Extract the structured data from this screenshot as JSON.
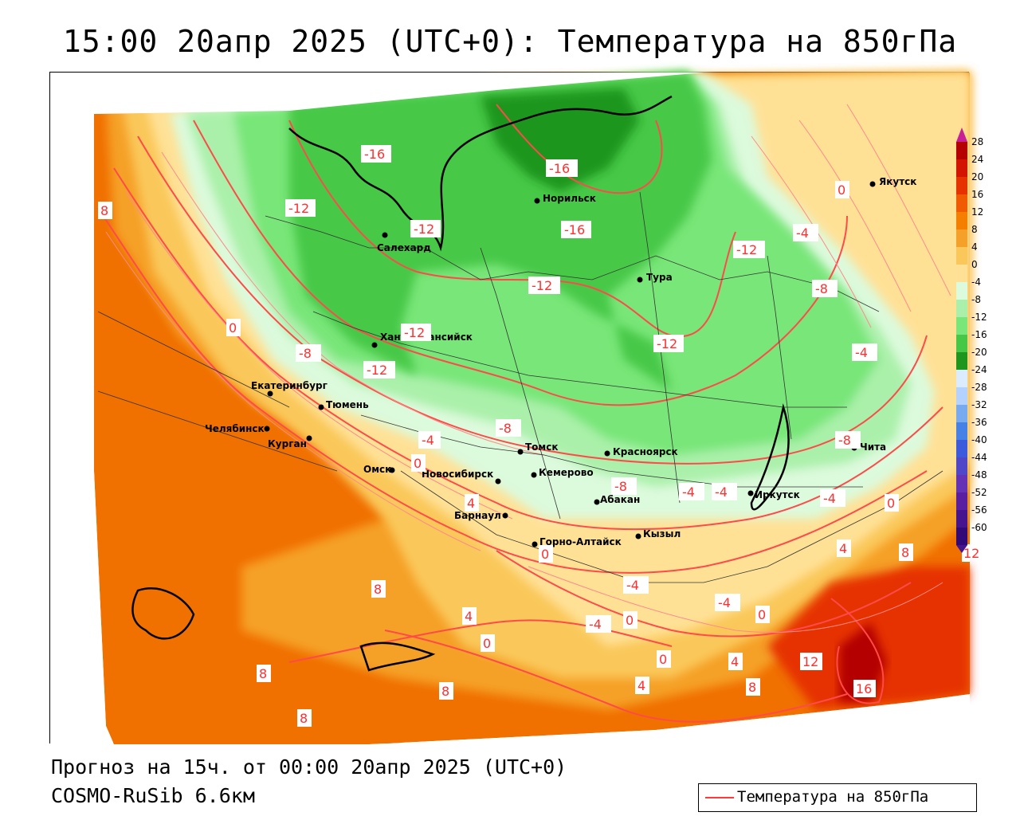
{
  "title": "15:00 20апр 2025 (UTC+0): Температура на 850гПа",
  "footer": {
    "forecast": "Прогноз на 15ч. от 00:00 20апр 2025 (UTC+0)",
    "model": "COSMO-RuSib 6.6км"
  },
  "legend": {
    "label": "Температура на 850гПа",
    "line_color": "#ff3a3a"
  },
  "colorbar": {
    "ticks": [
      "28",
      "24",
      "20",
      "16",
      "12",
      "8",
      "4",
      "0",
      "-4",
      "-8",
      "-12",
      "-16",
      "-20",
      "-24",
      "-28",
      "-32",
      "-36",
      "-40",
      "-44",
      "-48",
      "-52",
      "-56",
      "-60"
    ],
    "colors": [
      "#b40000",
      "#d21400",
      "#e63200",
      "#f05a00",
      "#f57d00",
      "#f5a028",
      "#fac85a",
      "#ffe196",
      "#dcfadc",
      "#aaf0aa",
      "#78e678",
      "#46c846",
      "#1e961e",
      "#dcecff",
      "#b4d2ff",
      "#78aaf0",
      "#4682e6",
      "#3c5adc",
      "#5046c8",
      "#6432b4",
      "#5a1ea0",
      "#46148c",
      "#320a78"
    ]
  },
  "cities": [
    {
      "name": "Якутск"
    },
    {
      "name": "Норильск"
    },
    {
      "name": "Салехард"
    },
    {
      "name": "Тура"
    },
    {
      "name": "Ханты-Мансийск"
    },
    {
      "name": "Екатеринбург"
    },
    {
      "name": "Тюмень"
    },
    {
      "name": "Челябинск"
    },
    {
      "name": "Курган"
    },
    {
      "name": "Омск"
    },
    {
      "name": "Томск"
    },
    {
      "name": "Красноярск"
    },
    {
      "name": "Новосибирск"
    },
    {
      "name": "Кемерово"
    },
    {
      "name": "Абакан"
    },
    {
      "name": "Иркутск"
    },
    {
      "name": "Чита"
    },
    {
      "name": "Барнаул"
    },
    {
      "name": "Горно-Алтайск"
    },
    {
      "name": "Кызыл"
    }
  ],
  "contour_labels": [
    "-16",
    "-16",
    "-16",
    "-12",
    "-12",
    "-12",
    "-12",
    "-12",
    "-12",
    "-12",
    "-8",
    "-8",
    "-8",
    "-8",
    "-8",
    "-4",
    "-4",
    "-4",
    "-4",
    "-4",
    "-4",
    "-4",
    "-4",
    "-4",
    "0",
    "0",
    "0",
    "0",
    "0",
    "0",
    "0",
    "0",
    "0",
    "4",
    "4",
    "4",
    "4",
    "4",
    "8",
    "8",
    "8",
    "8",
    "8",
    "8",
    "8",
    "12",
    "12",
    "16"
  ]
}
